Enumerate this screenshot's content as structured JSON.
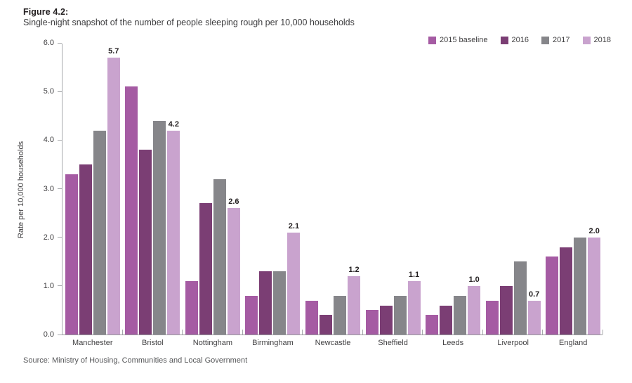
{
  "chart_data": {
    "type": "bar",
    "title": "Figure 4.2:",
    "subtitle": "Single-night snapshot of the number of people sleeping rough per 10,000 households",
    "ylabel": "Rate per 10,000 households",
    "ylim": [
      0,
      6
    ],
    "ytick_labels": [
      "0.0",
      "1.0",
      "2.0",
      "3.0",
      "4.0",
      "5.0",
      "6.0"
    ],
    "grid": "off",
    "legend_position": "top-right",
    "categories": [
      "Manchester",
      "Bristol",
      "Nottingham",
      "Birmingham",
      "Newcastle",
      "Sheffield",
      "Leeds",
      "Liverpool",
      "England"
    ],
    "series": [
      {
        "name": "2015 baseline",
        "color": "#a55ba3",
        "values": [
          3.3,
          5.1,
          1.1,
          0.8,
          0.7,
          0.5,
          0.4,
          0.7,
          1.6
        ]
      },
      {
        "name": "2016",
        "color": "#7b3e74",
        "values": [
          3.5,
          3.8,
          2.7,
          1.3,
          0.4,
          0.6,
          0.6,
          1.0,
          1.8
        ]
      },
      {
        "name": "2017",
        "color": "#86868a",
        "values": [
          4.2,
          4.4,
          3.2,
          1.3,
          0.8,
          0.8,
          0.8,
          1.5,
          2.0
        ]
      },
      {
        "name": "2018",
        "color": "#c9a3ce",
        "values": [
          5.7,
          4.2,
          2.6,
          2.1,
          1.2,
          1.1,
          1.0,
          0.7,
          2.0
        ],
        "data_labels": [
          "5.7",
          "4.2",
          "2.6",
          "2.1",
          "1.2",
          "1.1",
          "1.0",
          "0.7",
          "2.0"
        ]
      }
    ],
    "source": "Source: Ministry of Housing, Communities and Local Government",
    "axis_color": "#a7a9ac",
    "text_color": "#414042"
  }
}
